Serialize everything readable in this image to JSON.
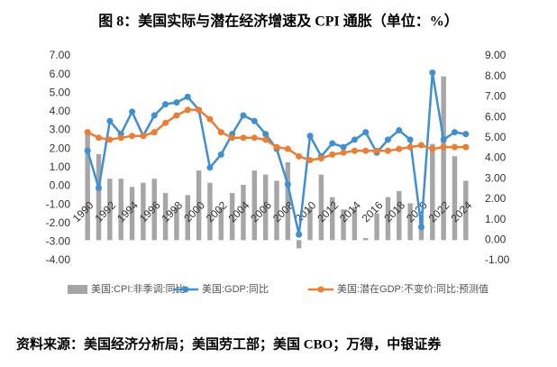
{
  "chart_data": {
    "type": "bar_line",
    "title": "图 8：美国实际与潜在经济增速及 CPI 通胀（单位：%）",
    "source": "资料来源：美国经济分析局；美国劳工部；美国 CBO；万得，中银证券",
    "categories": [
      "1990",
      null,
      "1992",
      null,
      "1994",
      null,
      "1996",
      null,
      "1998",
      null,
      "2000",
      null,
      "2002",
      null,
      "2004",
      null,
      "2006",
      null,
      "2008",
      null,
      "2010",
      null,
      "2012",
      null,
      "2014",
      null,
      "2016",
      null,
      "2018",
      null,
      "2020",
      null,
      "2022",
      null,
      "2024"
    ],
    "series": [
      {
        "name": "美国:CPI:非季调:同比",
        "kind": "bar",
        "axis": "y2",
        "color": "#a6a6a6",
        "values": [
          5.4,
          4.2,
          3.0,
          3.0,
          2.6,
          2.8,
          3.0,
          2.3,
          1.6,
          2.2,
          3.4,
          2.8,
          1.6,
          2.3,
          2.7,
          3.4,
          3.2,
          2.9,
          3.8,
          -0.4,
          1.6,
          3.2,
          2.1,
          1.5,
          1.6,
          0.1,
          1.3,
          2.1,
          2.4,
          1.8,
          1.2,
          4.7,
          8.0,
          4.1,
          2.9
        ]
      },
      {
        "name": "美国:GDP:同比",
        "kind": "line",
        "color": "#3f8fd2",
        "values": [
          1.9,
          -0.1,
          3.5,
          2.8,
          4.0,
          2.7,
          3.8,
          4.4,
          4.5,
          4.8,
          4.1,
          1.0,
          1.7,
          2.8,
          3.8,
          3.5,
          2.8,
          2.0,
          0.1,
          -2.6,
          2.7,
          1.6,
          2.3,
          2.1,
          2.5,
          2.9,
          1.8,
          2.5,
          3.0,
          2.5,
          -2.2,
          6.1,
          2.5,
          2.9,
          2.8
        ]
      },
      {
        "name": "美国:潜在GDP:不变价:同比:预测值",
        "kind": "line",
        "color": "#ef7d31",
        "values": [
          2.9,
          2.6,
          2.5,
          2.6,
          2.7,
          2.7,
          2.9,
          3.4,
          3.8,
          4.1,
          4.1,
          3.6,
          2.9,
          2.6,
          2.6,
          2.6,
          2.5,
          2.1,
          2.0,
          1.6,
          1.4,
          1.5,
          1.7,
          1.8,
          1.9,
          1.9,
          1.9,
          1.9,
          2.0,
          2.1,
          2.2,
          2.0,
          2.1,
          2.1,
          2.1
        ]
      }
    ],
    "ylim": [
      -4,
      7
    ],
    "yticks": [
      {
        "value": -4,
        "label": "-4.00"
      },
      {
        "value": -3,
        "label": "-3.00"
      },
      {
        "value": -2,
        "label": "-2.00"
      },
      {
        "value": -1,
        "label": "-1.00"
      },
      {
        "value": 0,
        "label": "0.00"
      },
      {
        "value": 1,
        "label": "1.00"
      },
      {
        "value": 2,
        "label": "2.00"
      },
      {
        "value": 3,
        "label": "3.00"
      },
      {
        "value": 4,
        "label": "4.00"
      },
      {
        "value": 5,
        "label": "5.00"
      },
      {
        "value": 6,
        "label": "6.00"
      },
      {
        "value": 7,
        "label": "7.00"
      }
    ],
    "y2lim": [
      -1,
      9
    ],
    "y2ticks": [
      {
        "value": -1,
        "label": "-1.00"
      },
      {
        "value": 0,
        "label": "0.00"
      },
      {
        "value": 1,
        "label": "1.00"
      },
      {
        "value": 2,
        "label": "2.00"
      },
      {
        "value": 3,
        "label": "3.00"
      },
      {
        "value": 4,
        "label": "4.00"
      },
      {
        "value": 5,
        "label": "5.00"
      },
      {
        "value": 6,
        "label": "6.00"
      },
      {
        "value": 7,
        "label": "7.00"
      },
      {
        "value": 8,
        "label": "8.00"
      },
      {
        "value": 9,
        "label": "9.00"
      }
    ],
    "legend": "bottom"
  }
}
